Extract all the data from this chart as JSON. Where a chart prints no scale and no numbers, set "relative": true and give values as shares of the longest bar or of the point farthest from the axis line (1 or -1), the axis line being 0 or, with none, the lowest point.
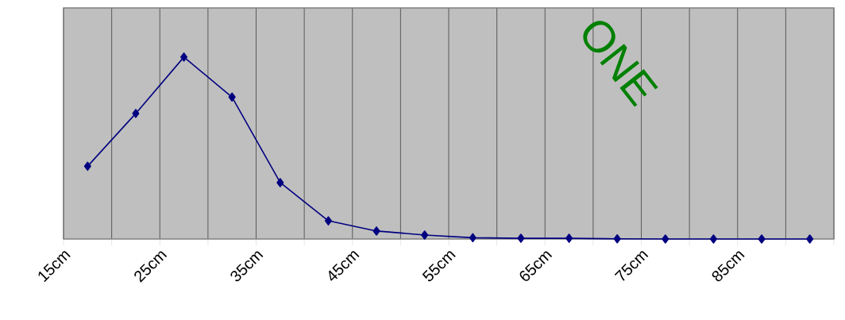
{
  "chart_data": {
    "type": "line",
    "relative": true,
    "x": [
      17.5,
      22.5,
      27.5,
      32.5,
      37.5,
      42.5,
      47.5,
      52.5,
      57.5,
      62.5,
      67.5,
      72.5,
      77.5,
      82.5,
      87.5,
      92.5
    ],
    "values": [
      0.4,
      0.69,
      1,
      0.78,
      0.31,
      0.1,
      0.044,
      0.022,
      0.007,
      0.004,
      0.004,
      0.001,
      0,
      0,
      0,
      0
    ],
    "xlim": [
      15,
      95
    ],
    "xticks": [
      {
        "value": 15,
        "label": "15cm"
      },
      {
        "value": 20,
        "label": null
      },
      {
        "value": 25,
        "label": "25cm"
      },
      {
        "value": 30,
        "label": null
      },
      {
        "value": 35,
        "label": "35cm"
      },
      {
        "value": 40,
        "label": null
      },
      {
        "value": 45,
        "label": "45cm"
      },
      {
        "value": 50,
        "label": null
      },
      {
        "value": 55,
        "label": "55cm"
      },
      {
        "value": 60,
        "label": null
      },
      {
        "value": 65,
        "label": "65cm"
      },
      {
        "value": 70,
        "label": null
      },
      {
        "value": 75,
        "label": "75cm"
      },
      {
        "value": 80,
        "label": null
      },
      {
        "value": 85,
        "label": "85cm"
      },
      {
        "value": 90,
        "label": null
      },
      {
        "value": 95,
        "label": null
      }
    ],
    "color": "#000080",
    "marker": "diamond",
    "grid": "x",
    "annotations": [
      "ONE"
    ]
  }
}
